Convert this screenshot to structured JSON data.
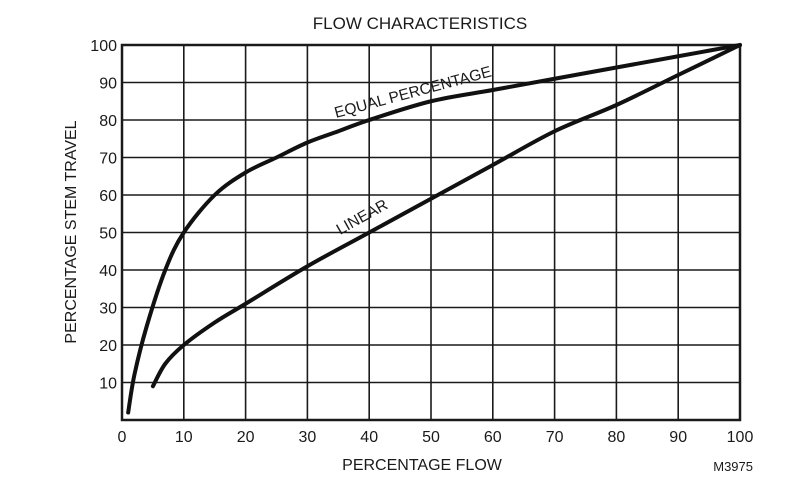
{
  "chart_data": {
    "type": "line",
    "title": "FLOW CHARACTERISTICS",
    "xlabel": "PERCENTAGE FLOW",
    "ylabel": "PERCENTAGE STEM TRAVEL",
    "xlim": [
      0,
      100
    ],
    "ylim": [
      0,
      100
    ],
    "x_ticks": [
      "0",
      "10",
      "20",
      "30",
      "40",
      "50",
      "60",
      "70",
      "80",
      "90",
      "100"
    ],
    "y_ticks": [
      "10",
      "20",
      "30",
      "40",
      "50",
      "60",
      "70",
      "80",
      "90",
      "100"
    ],
    "grid": true,
    "series": [
      {
        "name": "EQUAL PERCENTAGE",
        "x": [
          1,
          2,
          4,
          7,
          10,
          15,
          20,
          25,
          30,
          35,
          40,
          50,
          60,
          70,
          80,
          90,
          95,
          100
        ],
        "y": [
          2,
          12,
          25,
          40,
          50,
          60,
          66,
          70,
          74,
          77,
          80,
          85,
          88,
          91,
          94,
          97,
          98.5,
          100
        ]
      },
      {
        "name": "LINEAR",
        "x": [
          5,
          7,
          10,
          15,
          20,
          30,
          40,
          50,
          60,
          70,
          80,
          90,
          100
        ],
        "y": [
          9,
          15,
          20,
          26,
          31,
          41,
          50,
          59,
          68,
          77,
          84,
          92,
          100
        ]
      }
    ],
    "code": "M3975"
  }
}
